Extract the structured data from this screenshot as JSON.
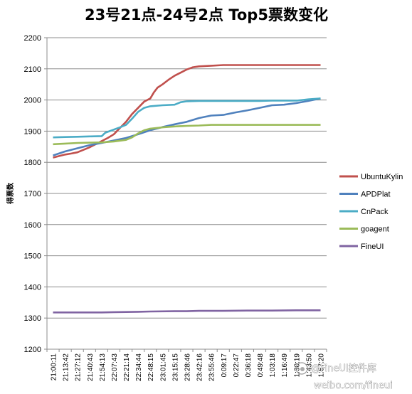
{
  "chart_data": {
    "type": "line",
    "title": "23号21点-24号2点  Top5票数变化",
    "ylabel": "得票数",
    "xlabel": "",
    "ylim": [
      1200,
      2200
    ],
    "yticks": [
      1200,
      1300,
      1400,
      1500,
      1600,
      1700,
      1800,
      1900,
      2000,
      2100,
      2200
    ],
    "grid": "horizontal",
    "legend_position": "right",
    "x_tick_labels": [
      "21:00:11",
      "21:13:42",
      "21:27:12",
      "21:40:43",
      "21:54:13",
      "22:07:43",
      "22:21:14",
      "22:34:44",
      "22:48:15",
      "23:01:45",
      "23:15:15",
      "23:28:46",
      "23:42:16",
      "23:55:46",
      "0:09:17",
      "0:22:47",
      "0:36:18",
      "0:49:48",
      "1:03:18",
      "1:16:49",
      "1:30:19",
      "1:43:50",
      "1:57:20"
    ],
    "series": [
      {
        "name": "UbuntuKylin",
        "color": "#C0504D",
        "points": [
          [
            0,
            1815
          ],
          [
            0.5,
            1820
          ],
          [
            1,
            1825
          ],
          [
            1.5,
            1828
          ],
          [
            2,
            1832
          ],
          [
            2.5,
            1840
          ],
          [
            3,
            1848
          ],
          [
            3.5,
            1858
          ],
          [
            4,
            1868
          ],
          [
            4.5,
            1878
          ],
          [
            5,
            1890
          ],
          [
            5.5,
            1910
          ],
          [
            6,
            1930
          ],
          [
            6.5,
            1955
          ],
          [
            7,
            1975
          ],
          [
            7.5,
            1995
          ],
          [
            8,
            2005
          ],
          [
            8.3,
            2025
          ],
          [
            8.6,
            2040
          ],
          [
            9,
            2050
          ],
          [
            9.5,
            2065
          ],
          [
            10,
            2078
          ],
          [
            10.5,
            2088
          ],
          [
            11,
            2098
          ],
          [
            11.5,
            2105
          ],
          [
            12,
            2108
          ],
          [
            13,
            2110
          ],
          [
            14,
            2112
          ],
          [
            15,
            2112
          ],
          [
            16,
            2112
          ],
          [
            17,
            2112
          ],
          [
            18,
            2112
          ],
          [
            19,
            2112
          ],
          [
            20,
            2112
          ],
          [
            21,
            2112
          ],
          [
            22,
            2112
          ]
        ]
      },
      {
        "name": "APDPlat",
        "color": "#4F81BD",
        "points": [
          [
            0,
            1822
          ],
          [
            1,
            1835
          ],
          [
            2,
            1845
          ],
          [
            3,
            1855
          ],
          [
            4,
            1862
          ],
          [
            5,
            1870
          ],
          [
            6,
            1878
          ],
          [
            7,
            1890
          ],
          [
            8,
            1903
          ],
          [
            9,
            1913
          ],
          [
            10,
            1922
          ],
          [
            11,
            1930
          ],
          [
            12,
            1942
          ],
          [
            13,
            1950
          ],
          [
            14,
            1952
          ],
          [
            15,
            1960
          ],
          [
            16,
            1967
          ],
          [
            17,
            1975
          ],
          [
            18,
            1983
          ],
          [
            19,
            1985
          ],
          [
            20,
            1990
          ],
          [
            21,
            1997
          ],
          [
            22,
            2005
          ]
        ]
      },
      {
        "name": "CnPack",
        "color": "#4BACC6",
        "points": [
          [
            0,
            1880
          ],
          [
            1,
            1881
          ],
          [
            2,
            1882
          ],
          [
            3,
            1883
          ],
          [
            4,
            1884
          ],
          [
            4.3,
            1895
          ],
          [
            5,
            1905
          ],
          [
            5.5,
            1912
          ],
          [
            6,
            1920
          ],
          [
            6.5,
            1940
          ],
          [
            7,
            1962
          ],
          [
            7.5,
            1975
          ],
          [
            8,
            1980
          ],
          [
            9,
            1983
          ],
          [
            10,
            1985
          ],
          [
            10.5,
            1993
          ],
          [
            11,
            1996
          ],
          [
            12,
            1997
          ],
          [
            13,
            1997
          ],
          [
            14,
            1997
          ],
          [
            15,
            1997
          ],
          [
            16,
            1997
          ],
          [
            17,
            1997
          ],
          [
            18,
            1998
          ],
          [
            19,
            1998
          ],
          [
            20,
            1998
          ],
          [
            21,
            2002
          ],
          [
            22,
            2005
          ]
        ]
      },
      {
        "name": "goagent",
        "color": "#9BBB59",
        "points": [
          [
            0,
            1858
          ],
          [
            1,
            1860
          ],
          [
            2,
            1862
          ],
          [
            3,
            1863
          ],
          [
            4,
            1864
          ],
          [
            5,
            1867
          ],
          [
            6,
            1872
          ],
          [
            6.5,
            1880
          ],
          [
            7,
            1893
          ],
          [
            7.5,
            1903
          ],
          [
            8,
            1908
          ],
          [
            9,
            1912
          ],
          [
            10,
            1915
          ],
          [
            11,
            1917
          ],
          [
            12,
            1918
          ],
          [
            13,
            1920
          ],
          [
            14,
            1920
          ],
          [
            15,
            1920
          ],
          [
            16,
            1920
          ],
          [
            17,
            1920
          ],
          [
            18,
            1920
          ],
          [
            19,
            1920
          ],
          [
            20,
            1920
          ],
          [
            21,
            1920
          ],
          [
            22,
            1920
          ]
        ]
      },
      {
        "name": "FineUI",
        "color": "#8064A2",
        "points": [
          [
            0,
            1318
          ],
          [
            2,
            1318
          ],
          [
            4,
            1318
          ],
          [
            5,
            1319
          ],
          [
            7,
            1320
          ],
          [
            8,
            1321
          ],
          [
            10,
            1322
          ],
          [
            11,
            1322
          ],
          [
            12,
            1323
          ],
          [
            14,
            1323
          ],
          [
            16,
            1324
          ],
          [
            18,
            1324
          ],
          [
            20,
            1325
          ],
          [
            22,
            1325
          ]
        ]
      }
    ],
    "watermark": "@FineUI控件库 weibo.com/fineui"
  }
}
